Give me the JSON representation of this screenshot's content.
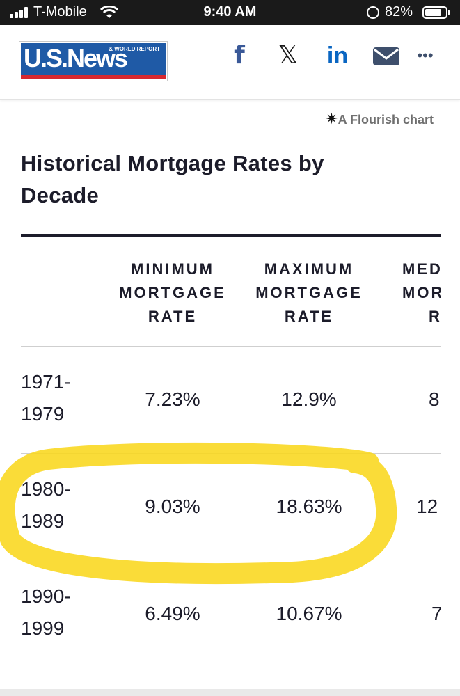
{
  "status_bar": {
    "carrier": "T-Mobile",
    "time": "9:40 AM",
    "battery_pct": "82%",
    "battery_level": 0.82
  },
  "header": {
    "logo_text": "U.S.News",
    "logo_tagline": "& WORLD REPORT",
    "share_icons": [
      "facebook-icon",
      "x-icon",
      "linkedin-icon",
      "mail-icon",
      "more-icon"
    ]
  },
  "credit": "A Flourish chart",
  "title": "Historical Mortgage Rates by Decade",
  "table": {
    "columns": [
      "MINIMUM MORTGAGE RATE",
      "MAXIMUM MORTGAGE RATE",
      "MEDIAN MORTGAGE RATE"
    ],
    "columns_lines": [
      [
        "MINIMUM",
        "MORTGAGE",
        "RATE"
      ],
      [
        "MAXIMUM",
        "MORTGAGE",
        "RATE"
      ],
      [
        "MED",
        "MORT",
        "R"
      ]
    ],
    "rows": [
      {
        "decade_lines": [
          "1971-",
          "1979"
        ],
        "min": "7.23%",
        "max": "12.9%",
        "median_partial": "8"
      },
      {
        "decade_lines": [
          "1980-",
          "1989"
        ],
        "min": "9.03%",
        "max": "18.63%",
        "median_partial": "12"
      },
      {
        "decade_lines": [
          "1990-",
          "1999"
        ],
        "min": "6.49%",
        "max": "10.67%",
        "median_partial": "7"
      }
    ]
  },
  "colors": {
    "status_bar": "#1a1a1a",
    "logo_blue": "#1f5aa6",
    "logo_red": "#d7282f",
    "highlight": "#f9d71c",
    "text": "#1c1c2a"
  }
}
